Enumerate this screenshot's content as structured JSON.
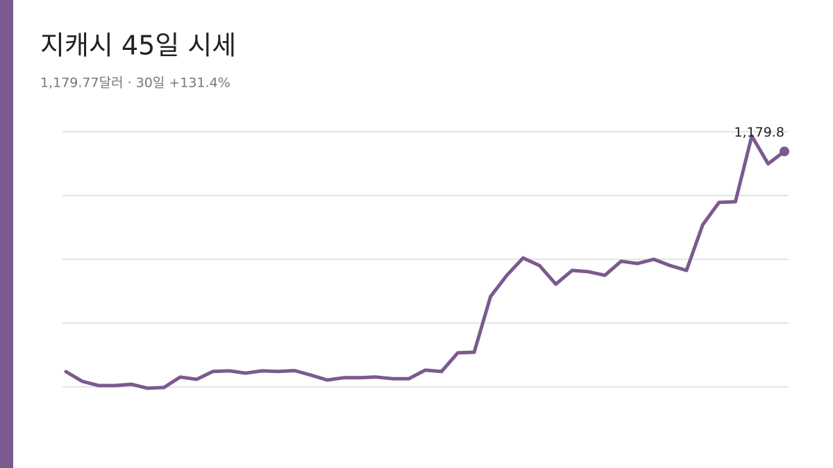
{
  "chart_data": {
    "type": "line",
    "title": "지캐시 45일 시세",
    "subtitle": "1,179.77달러 · 30일 +131.4%",
    "values": [
      506.6,
      477,
      464,
      464,
      468,
      456,
      458,
      490,
      483,
      507,
      509,
      502,
      509,
      507,
      509.8,
      496,
      481,
      488,
      488,
      490,
      485,
      485,
      511,
      507,
      564,
      566,
      736,
      801,
      854,
      831,
      774,
      816,
      812,
      801,
      844,
      837,
      850,
      831,
      816,
      956,
      1024,
      1026,
      1227,
      1142,
      1179.77
    ],
    "value_labels": [
      null,
      null,
      null,
      null,
      null,
      null,
      null,
      null,
      null,
      null,
      null,
      null,
      null,
      null,
      null,
      null,
      null,
      null,
      null,
      null,
      null,
      null,
      null,
      null,
      null,
      null,
      null,
      null,
      null,
      null,
      null,
      null,
      null,
      null,
      null,
      null,
      null,
      null,
      null,
      null,
      null,
      null,
      null,
      null,
      "1,179.8"
    ],
    "color": "#7b5a8f",
    "ylim": [
      460,
      1240
    ],
    "yticks": [
      460,
      655,
      850,
      1045,
      1240
    ],
    "grid": true
  }
}
